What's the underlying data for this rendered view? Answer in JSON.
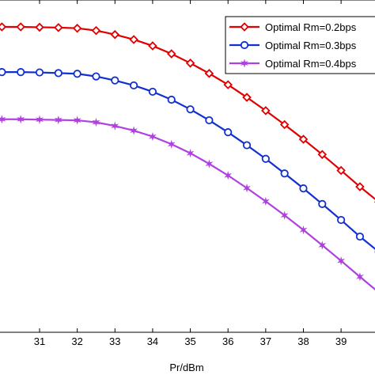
{
  "chart_data": {
    "type": "line",
    "xlabel": "Pr/dBm",
    "ylabel": "",
    "xlim": [
      29.95,
      39.9
    ],
    "ylim": [
      0,
      1
    ],
    "x_ticks": [
      "31",
      "32",
      "33",
      "34",
      "35",
      "36",
      "37",
      "38",
      "39"
    ],
    "grid": false,
    "legend_position": "top-right",
    "x": [
      30,
      30.5,
      31,
      31.5,
      32,
      32.5,
      33,
      33.5,
      34,
      34.5,
      35,
      35.5,
      36,
      36.5,
      37,
      37.5,
      38,
      38.5,
      39,
      39.5,
      40
    ],
    "series": [
      {
        "name": "Optimal Rm=0.2bps",
        "color": "#e00000",
        "marker": "diamond",
        "values": [
          0.919,
          0.919,
          0.918,
          0.917,
          0.915,
          0.908,
          0.896,
          0.881,
          0.862,
          0.838,
          0.81,
          0.779,
          0.745,
          0.707,
          0.667,
          0.625,
          0.581,
          0.535,
          0.487,
          0.438,
          0.392
        ]
      },
      {
        "name": "Optimal Rm=0.3bps",
        "color": "#1030d0",
        "marker": "circle",
        "values": [
          0.783,
          0.783,
          0.782,
          0.78,
          0.778,
          0.77,
          0.758,
          0.743,
          0.724,
          0.7,
          0.671,
          0.638,
          0.602,
          0.563,
          0.522,
          0.478,
          0.433,
          0.386,
          0.338,
          0.288,
          0.242
        ]
      },
      {
        "name": "Optimal Rm=0.4bps",
        "color": "#b040e0",
        "marker": "star",
        "values": [
          0.641,
          0.641,
          0.64,
          0.639,
          0.638,
          0.632,
          0.621,
          0.607,
          0.589,
          0.566,
          0.539,
          0.507,
          0.472,
          0.434,
          0.394,
          0.352,
          0.308,
          0.262,
          0.215,
          0.167,
          0.12
        ]
      }
    ]
  }
}
